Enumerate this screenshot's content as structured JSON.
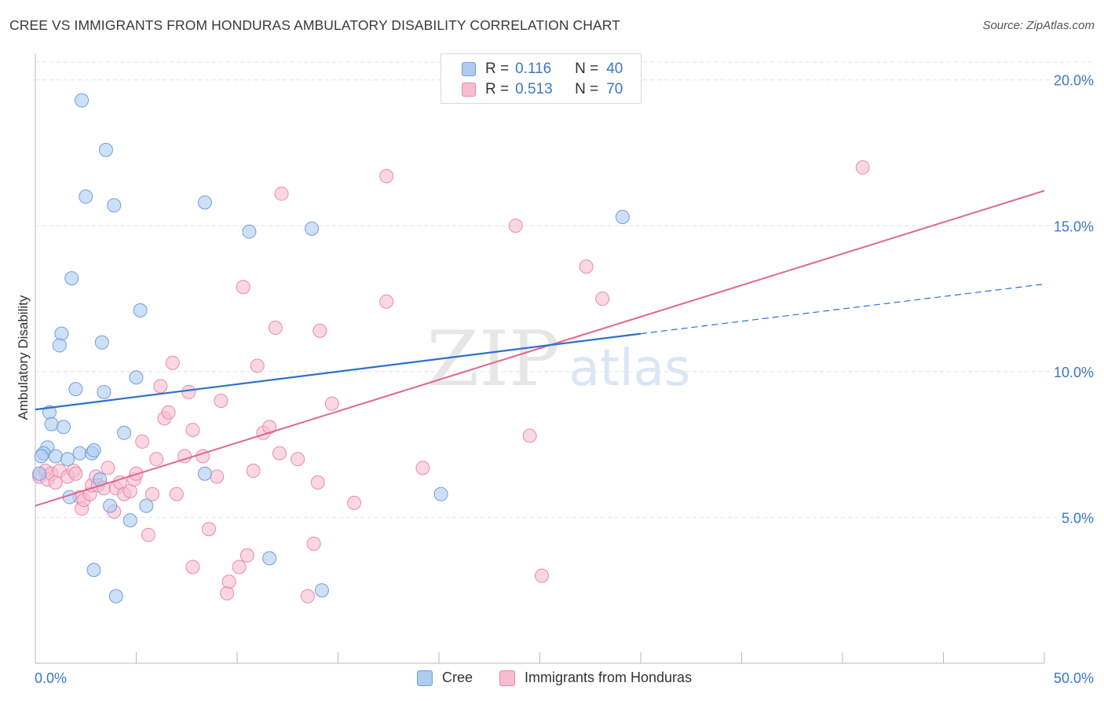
{
  "title": "CREE VS IMMIGRANTS FROM HONDURAS AMBULATORY DISABILITY CORRELATION CHART",
  "source": "Source: ZipAtlas.com",
  "watermark": {
    "zip": "ZIP",
    "atlas": "atlas"
  },
  "legend": {
    "rows": [
      {
        "r_label": "R =",
        "r_value": "0.116",
        "n_label": "N =",
        "n_value": "40"
      },
      {
        "r_label": "R =",
        "r_value": "0.513",
        "n_label": "N =",
        "n_value": "70"
      }
    ]
  },
  "bottom_legend": {
    "series1": "Cree",
    "series2": "Immigrants from Honduras"
  },
  "colors": {
    "cree_fill": "#aecbf0",
    "cree_stroke": "#6f9fde",
    "cree_line": "#2f6fd0",
    "hond_fill": "#f7bcd0",
    "hond_stroke": "#e98aab",
    "hond_line": "#e0668f",
    "axis_text": "#3b77c9",
    "grid": "#e2e2e2"
  },
  "chart_data": {
    "type": "scatter",
    "title": "CREE VS IMMIGRANTS FROM HONDURAS AMBULATORY DISABILITY CORRELATION CHART",
    "xlabel": "",
    "ylabel": "Ambulatory Disability",
    "xlim": [
      0,
      50
    ],
    "ylim": [
      0,
      20.8
    ],
    "x_tick_labels": [
      "0.0%",
      "50.0%"
    ],
    "y_ticks": [
      5,
      10,
      15,
      20
    ],
    "y_tick_labels": [
      "5.0%",
      "10.0%",
      "15.0%",
      "20.0%"
    ],
    "grid": true,
    "legend_position": "top-center",
    "series": [
      {
        "name": "Cree",
        "r": 0.116,
        "n": 40,
        "trend": {
          "x0": 0,
          "y0": 8.7,
          "x1": 30,
          "y1": 11.3,
          "dashed_to_x": 50,
          "dashed_to_y": 13.0
        },
        "points": [
          [
            2.3,
            19.3
          ],
          [
            3.5,
            17.6
          ],
          [
            2.5,
            16.0
          ],
          [
            3.9,
            15.7
          ],
          [
            8.4,
            15.8
          ],
          [
            10.6,
            14.8
          ],
          [
            13.7,
            14.9
          ],
          [
            29.1,
            15.3
          ],
          [
            1.8,
            13.2
          ],
          [
            5.2,
            12.1
          ],
          [
            1.3,
            11.3
          ],
          [
            1.2,
            10.9
          ],
          [
            3.3,
            11.0
          ],
          [
            5.0,
            9.8
          ],
          [
            2.0,
            9.4
          ],
          [
            3.4,
            9.3
          ],
          [
            0.7,
            8.6
          ],
          [
            0.8,
            8.2
          ],
          [
            1.4,
            8.1
          ],
          [
            4.4,
            7.9
          ],
          [
            0.6,
            7.4
          ],
          [
            0.4,
            7.2
          ],
          [
            0.3,
            7.1
          ],
          [
            1.0,
            7.1
          ],
          [
            1.6,
            7.0
          ],
          [
            2.2,
            7.2
          ],
          [
            2.8,
            7.2
          ],
          [
            2.9,
            7.3
          ],
          [
            0.2,
            6.5
          ],
          [
            8.4,
            6.5
          ],
          [
            3.2,
            6.3
          ],
          [
            1.7,
            5.7
          ],
          [
            3.7,
            5.4
          ],
          [
            5.5,
            5.4
          ],
          [
            20.1,
            5.8
          ],
          [
            4.7,
            4.9
          ],
          [
            2.9,
            3.2
          ],
          [
            11.6,
            3.6
          ],
          [
            4.0,
            2.3
          ],
          [
            14.2,
            2.5
          ]
        ]
      },
      {
        "name": "Immigrants from Honduras",
        "r": 0.513,
        "n": 70,
        "trend": {
          "x0": 0,
          "y0": 5.4,
          "x1": 50,
          "y1": 16.2
        },
        "points": [
          [
            0.2,
            6.4
          ],
          [
            0.5,
            6.6
          ],
          [
            0.6,
            6.3
          ],
          [
            0.8,
            6.5
          ],
          [
            1.0,
            6.2
          ],
          [
            1.2,
            6.6
          ],
          [
            1.6,
            6.4
          ],
          [
            1.9,
            6.6
          ],
          [
            2.0,
            6.5
          ],
          [
            2.2,
            5.7
          ],
          [
            2.3,
            5.3
          ],
          [
            2.4,
            5.6
          ],
          [
            2.7,
            5.8
          ],
          [
            2.8,
            6.1
          ],
          [
            3.0,
            6.4
          ],
          [
            3.1,
            6.1
          ],
          [
            3.4,
            6.0
          ],
          [
            3.6,
            6.7
          ],
          [
            3.9,
            5.2
          ],
          [
            4.0,
            6.0
          ],
          [
            4.2,
            6.2
          ],
          [
            4.4,
            5.8
          ],
          [
            4.7,
            5.9
          ],
          [
            4.9,
            6.3
          ],
          [
            5.0,
            6.5
          ],
          [
            5.3,
            7.6
          ],
          [
            5.6,
            4.4
          ],
          [
            5.8,
            5.8
          ],
          [
            6.0,
            7.0
          ],
          [
            6.2,
            9.5
          ],
          [
            6.4,
            8.4
          ],
          [
            6.6,
            8.6
          ],
          [
            6.8,
            10.3
          ],
          [
            7.0,
            5.8
          ],
          [
            7.4,
            7.1
          ],
          [
            7.6,
            9.3
          ],
          [
            7.8,
            8.0
          ],
          [
            7.8,
            3.3
          ],
          [
            8.3,
            7.1
          ],
          [
            8.6,
            4.6
          ],
          [
            9.0,
            6.4
          ],
          [
            9.2,
            9.0
          ],
          [
            9.5,
            2.4
          ],
          [
            9.6,
            2.8
          ],
          [
            10.1,
            3.3
          ],
          [
            10.3,
            12.9
          ],
          [
            10.5,
            3.7
          ],
          [
            10.8,
            6.6
          ],
          [
            11.0,
            10.2
          ],
          [
            11.3,
            7.9
          ],
          [
            11.6,
            8.1
          ],
          [
            11.9,
            11.5
          ],
          [
            12.1,
            7.2
          ],
          [
            12.2,
            16.1
          ],
          [
            13.0,
            7.0
          ],
          [
            13.5,
            2.3
          ],
          [
            13.8,
            4.1
          ],
          [
            14.0,
            6.2
          ],
          [
            14.1,
            11.4
          ],
          [
            14.7,
            8.9
          ],
          [
            15.8,
            5.5
          ],
          [
            17.4,
            16.7
          ],
          [
            17.4,
            12.4
          ],
          [
            19.2,
            6.7
          ],
          [
            23.8,
            15.0
          ],
          [
            24.5,
            7.8
          ],
          [
            25.1,
            3.0
          ],
          [
            27.3,
            13.6
          ],
          [
            28.1,
            12.5
          ],
          [
            41.0,
            17.0
          ]
        ]
      }
    ]
  }
}
